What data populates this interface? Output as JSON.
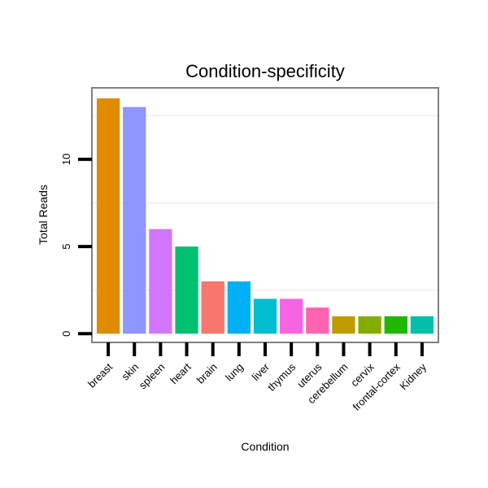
{
  "chart_data": {
    "type": "bar",
    "title": "Condition-specificity",
    "xlabel": "Condition",
    "ylabel": "Total Reads",
    "ylim": [
      -0.5,
      14.1
    ],
    "yticks": [
      0,
      5,
      10
    ],
    "categories": [
      "breast",
      "skin",
      "spleen",
      "heart",
      "brain",
      "lung",
      "liver",
      "thymus",
      "uterus",
      "cerebellum",
      "cervix",
      "frontal-cortex",
      "Kidney"
    ],
    "values": [
      13.5,
      13.0,
      6.0,
      5.0,
      3.0,
      3.0,
      2.0,
      2.0,
      1.5,
      1.0,
      1.0,
      1.0,
      1.0
    ],
    "colors": [
      "#e08b00",
      "#8f96ff",
      "#d375ff",
      "#00c172",
      "#f8766d",
      "#00b0f6",
      "#00bdd0",
      "#f564e3",
      "#ff64b0",
      "#c09b00",
      "#85ad00",
      "#1fb700",
      "#00c0ab"
    ],
    "grid": true,
    "legend": "none"
  }
}
